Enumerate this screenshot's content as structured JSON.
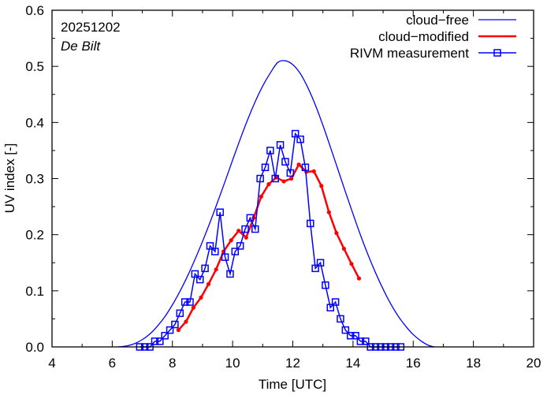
{
  "chart_data": {
    "type": "line",
    "xlabel": "Time  [UTC]",
    "ylabel": "UV index  [-]",
    "xlim": [
      4,
      20
    ],
    "ylim": [
      0.0,
      0.6
    ],
    "xticks": [
      "4",
      "6",
      "8",
      "10",
      "12",
      "14",
      "16",
      "18",
      "20"
    ],
    "yticks": [
      "0.0",
      "0.1",
      "0.2",
      "0.3",
      "0.4",
      "0.5",
      "0.6"
    ],
    "annotations": {
      "date": "20251202",
      "location": "De Bilt"
    },
    "legend_position": "top-right",
    "colors": {
      "cloud_free": "#0000ff",
      "cloud_modified": "#ff0000",
      "measurement": "#0000ff"
    },
    "series": [
      {
        "name": "cloud−free",
        "style": "line",
        "x": [
          6.2,
          6.5,
          6.75,
          7.0,
          7.25,
          7.5,
          7.75,
          8.0,
          8.25,
          8.5,
          8.75,
          9.0,
          9.25,
          9.5,
          9.75,
          10.0,
          10.25,
          10.5,
          10.75,
          11.0,
          11.25,
          11.5,
          11.75,
          12.0,
          12.25,
          12.5,
          12.75,
          13.0,
          13.25,
          13.5,
          13.75,
          14.0,
          14.25,
          14.5,
          14.75,
          15.0,
          15.25,
          15.5,
          15.75,
          16.0,
          16.25,
          16.5,
          16.7
        ],
        "values": [
          0.0,
          0.002,
          0.006,
          0.013,
          0.023,
          0.037,
          0.054,
          0.075,
          0.099,
          0.126,
          0.156,
          0.188,
          0.222,
          0.258,
          0.295,
          0.333,
          0.37,
          0.405,
          0.437,
          0.465,
          0.488,
          0.507,
          0.51,
          0.503,
          0.487,
          0.462,
          0.431,
          0.395,
          0.356,
          0.316,
          0.276,
          0.237,
          0.199,
          0.164,
          0.132,
          0.103,
          0.077,
          0.055,
          0.037,
          0.022,
          0.011,
          0.003,
          0.0
        ]
      },
      {
        "name": "cloud−modified",
        "style": "line-dots",
        "x": [
          8.2,
          8.45,
          8.7,
          8.95,
          9.2,
          9.45,
          9.7,
          9.95,
          10.2,
          10.45,
          10.7,
          10.95,
          11.2,
          11.45,
          11.7,
          11.95,
          12.2,
          12.45,
          12.7,
          12.95,
          13.2,
          13.45,
          13.7,
          13.95,
          14.2
        ],
        "values": [
          0.03,
          0.045,
          0.07,
          0.088,
          0.112,
          0.138,
          0.17,
          0.19,
          0.207,
          0.195,
          0.23,
          0.268,
          0.29,
          0.302,
          0.295,
          0.3,
          0.325,
          0.312,
          0.313,
          0.287,
          0.24,
          0.203,
          0.175,
          0.148,
          0.122
        ]
      },
      {
        "name": "RIVM measurement",
        "style": "line-squares",
        "x": [
          6.917,
          7.083,
          7.25,
          7.417,
          7.583,
          7.75,
          7.917,
          8.083,
          8.25,
          8.417,
          8.583,
          8.75,
          8.917,
          9.083,
          9.25,
          9.417,
          9.583,
          9.75,
          9.917,
          10.083,
          10.25,
          10.417,
          10.583,
          10.75,
          10.917,
          11.083,
          11.25,
          11.417,
          11.583,
          11.75,
          11.917,
          12.083,
          12.25,
          12.417,
          12.583,
          12.75,
          12.917,
          13.083,
          13.25,
          13.417,
          13.583,
          13.75,
          13.917,
          14.083,
          14.25,
          14.417,
          14.583,
          14.75,
          14.917,
          15.083,
          15.25,
          15.417,
          15.583
        ],
        "values": [
          0.0,
          0.0,
          0.0,
          0.01,
          0.01,
          0.02,
          0.03,
          0.04,
          0.06,
          0.08,
          0.08,
          0.13,
          0.12,
          0.14,
          0.18,
          0.17,
          0.24,
          0.16,
          0.13,
          0.17,
          0.18,
          0.21,
          0.23,
          0.21,
          0.3,
          0.32,
          0.35,
          0.3,
          0.36,
          0.33,
          0.31,
          0.38,
          0.37,
          0.32,
          0.22,
          0.14,
          0.15,
          0.11,
          0.07,
          0.08,
          0.05,
          0.03,
          0.02,
          0.02,
          0.01,
          0.01,
          0.0,
          0.0,
          0.0,
          0.0,
          0.0,
          0.0,
          0.0
        ]
      }
    ]
  }
}
